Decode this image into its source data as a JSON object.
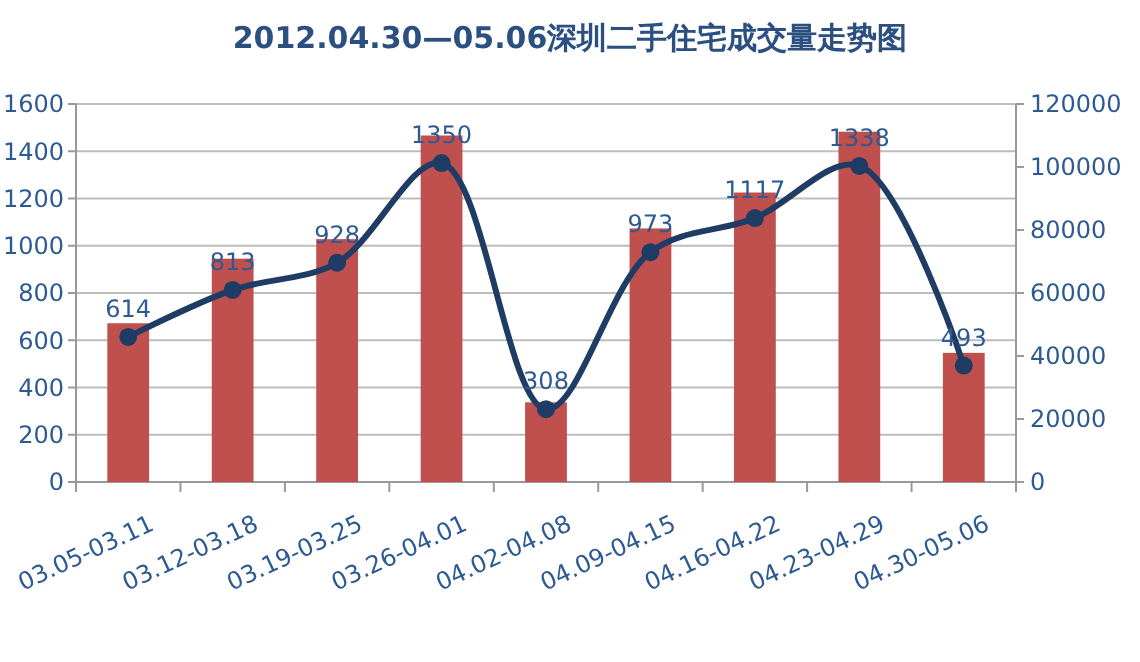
{
  "chart_data": {
    "type": "bar",
    "title": "2012.04.30—05.06深圳二手住宅成交量走势图",
    "categories": [
      "03.05-03.11",
      "03.12-03.18",
      "03.19-03.25",
      "03.26-04.01",
      "04.02-04.08",
      "04.09-04.15",
      "04.16-04.22",
      "04.23-04.29",
      "04.30-05.06"
    ],
    "series": [
      {
        "axis": "y2",
        "color": "#c0504d",
        "values": [
          50400,
          70900,
          77100,
          110000,
          25300,
          80500,
          91900,
          111200,
          41000
        ]
      },
      {
        "type": "line",
        "color": "#1f3d64",
        "marker": "circle",
        "data_labels": true,
        "values": [
          614,
          813,
          928,
          1350,
          308,
          973,
          1117,
          1338,
          493
        ]
      }
    ],
    "ylim": [
      0,
      1600
    ],
    "yticks": [
      0,
      200,
      400,
      600,
      800,
      1000,
      1200,
      1400,
      1600
    ],
    "y2lim": [
      0,
      120000
    ],
    "y2ticks": [
      0,
      20000,
      40000,
      60000,
      80000,
      100000,
      120000
    ],
    "grid": "y",
    "legend": false
  }
}
